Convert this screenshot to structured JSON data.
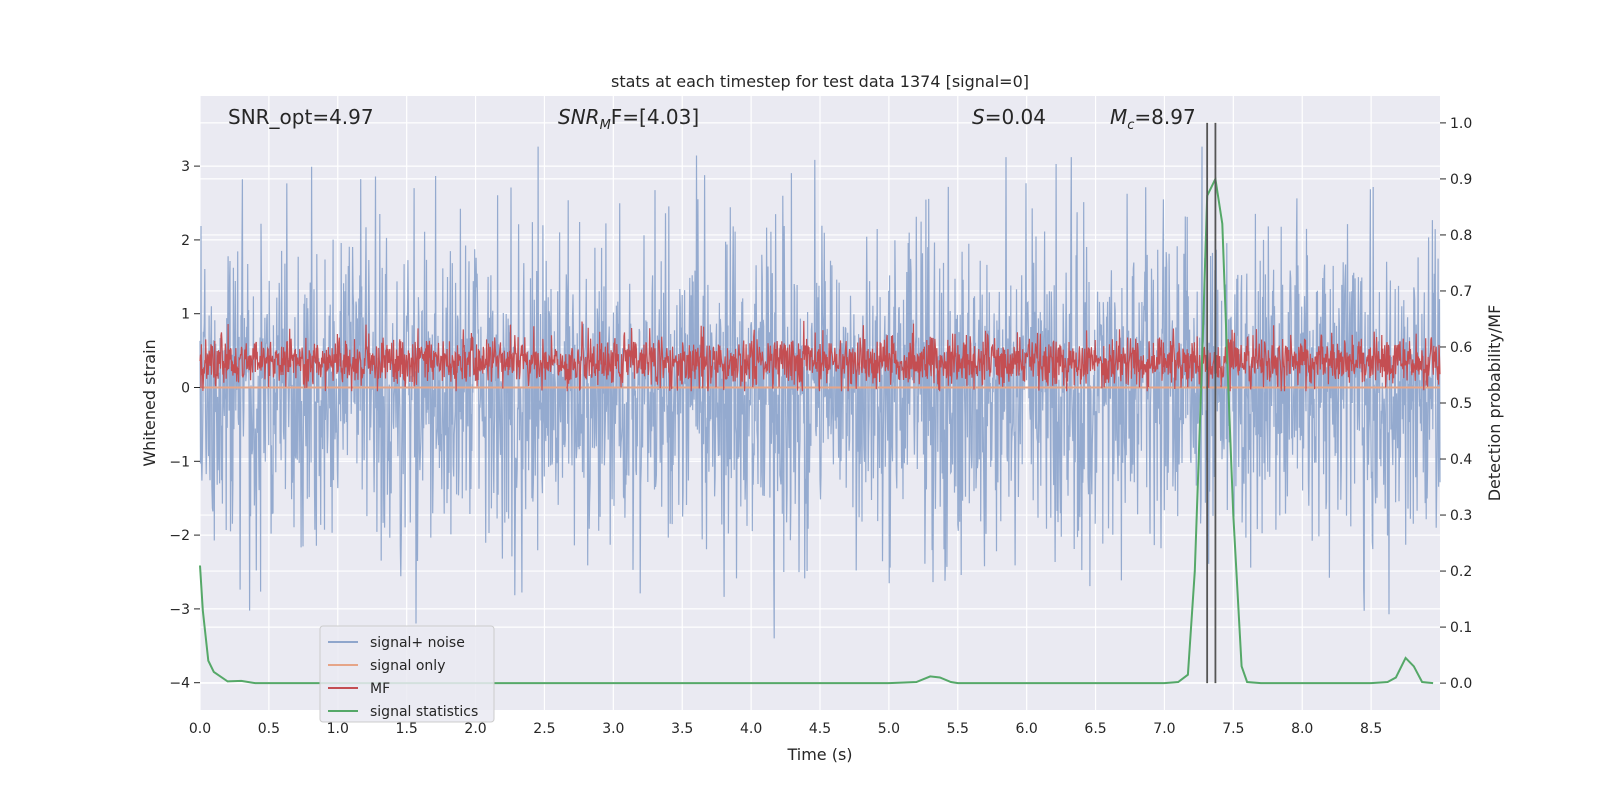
{
  "chart_data": {
    "type": "line",
    "title": "stats at each timestep for test data 1374 [signal=0]",
    "xlabel": "Time (s)",
    "ylabel": "Whitened strain",
    "ylabel_right": "Detection probability/MF",
    "xlim": [
      0.0,
      9.0
    ],
    "ylim": [
      -4.37,
      3.95
    ],
    "ylim_right": [
      -0.048,
      1.048
    ],
    "x_ticks": [
      "0.0",
      "0.5",
      "1.0",
      "1.5",
      "2.0",
      "2.5",
      "3.0",
      "3.5",
      "4.0",
      "4.5",
      "5.0",
      "5.5",
      "6.0",
      "6.5",
      "7.0",
      "7.5",
      "8.0",
      "8.5"
    ],
    "y_ticks": [
      "3",
      "2",
      "1",
      "0",
      "−1",
      "−2",
      "−3",
      "−4"
    ],
    "y_ticks_right": [
      "1.0",
      "0.9",
      "0.8",
      "0.7",
      "0.6",
      "0.5",
      "0.4",
      "0.3",
      "0.2",
      "0.1",
      "0.0"
    ],
    "annotations": {
      "snr_opt": "SNR_opt=4.97",
      "snr_mf_base": "SNR",
      "snr_mf_sub": "M",
      "snr_mf_rest": "F=[4.03]",
      "s_label": "S",
      "s_value": "=0.04",
      "mc_base": "M",
      "mc_sub": "c",
      "mc_value": "=8.97"
    },
    "vertical_lines_x": [
      7.31,
      7.37
    ],
    "series": [
      {
        "name": "signal+ noise",
        "color": "#8fa6cc",
        "axis": "left",
        "kind": "noise",
        "mean": 0.0,
        "amplitude": 2.1,
        "peak_max": 3.55
      },
      {
        "name": "signal only",
        "color": "#e6a588",
        "axis": "left",
        "kind": "flat",
        "value": 0.0
      },
      {
        "name": "MF",
        "color": "#c44e52",
        "axis": "left",
        "kind": "noise",
        "mean": 0.35,
        "amplitude": 0.35
      },
      {
        "name": "signal statistics",
        "color": "#55a868",
        "axis": "right",
        "kind": "line",
        "x": [
          0.0,
          0.02,
          0.06,
          0.1,
          0.2,
          0.3,
          0.4,
          0.5,
          1.0,
          2.0,
          3.0,
          4.0,
          5.0,
          5.2,
          5.3,
          5.37,
          5.45,
          5.5,
          6.0,
          7.0,
          7.1,
          7.17,
          7.22,
          7.27,
          7.31,
          7.37,
          7.42,
          7.46,
          7.5,
          7.56,
          7.6,
          7.7,
          8.0,
          8.5,
          8.62,
          8.68,
          8.75,
          8.81,
          8.87,
          8.95
        ],
        "y": [
          0.21,
          0.13,
          0.04,
          0.02,
          0.003,
          0.004,
          0.0,
          0.0,
          0.0,
          0.0,
          0.0,
          0.0,
          0.0,
          0.002,
          0.012,
          0.01,
          0.002,
          0.0,
          0.0,
          0.0,
          0.002,
          0.015,
          0.2,
          0.55,
          0.87,
          0.9,
          0.82,
          0.55,
          0.3,
          0.03,
          0.002,
          0.0,
          0.0,
          0.0,
          0.002,
          0.01,
          0.045,
          0.03,
          0.002,
          0.0
        ]
      }
    ],
    "legend_position": "lower-left",
    "grid": true
  }
}
